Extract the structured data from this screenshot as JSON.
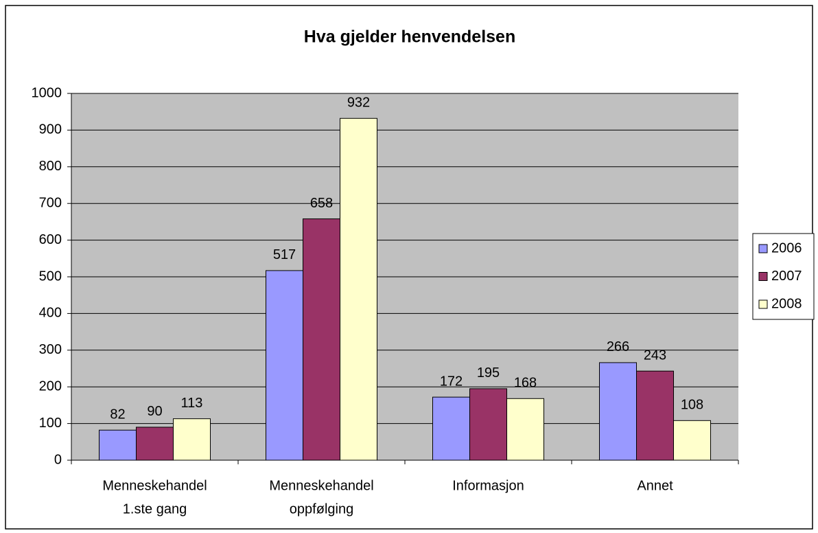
{
  "chart_data": {
    "type": "bar",
    "title": "Hva gjelder henvendelsen",
    "categories": [
      [
        "Menneskehandel",
        "1.ste gang"
      ],
      [
        "Menneskehandel",
        "oppfølging"
      ],
      [
        "Informasjon"
      ],
      [
        "Annet"
      ]
    ],
    "series": [
      {
        "name": "2006",
        "color": "#9999ff",
        "values": [
          82,
          517,
          172,
          266
        ]
      },
      {
        "name": "2007",
        "color": "#993366",
        "values": [
          90,
          658,
          195,
          243
        ]
      },
      {
        "name": "2008",
        "color": "#ffffcc",
        "values": [
          113,
          932,
          168,
          108
        ]
      }
    ],
    "ylim": [
      0,
      1000
    ],
    "yticks": [
      0,
      100,
      200,
      300,
      400,
      500,
      600,
      700,
      800,
      900,
      1000
    ],
    "grid": true,
    "legend": "right"
  }
}
